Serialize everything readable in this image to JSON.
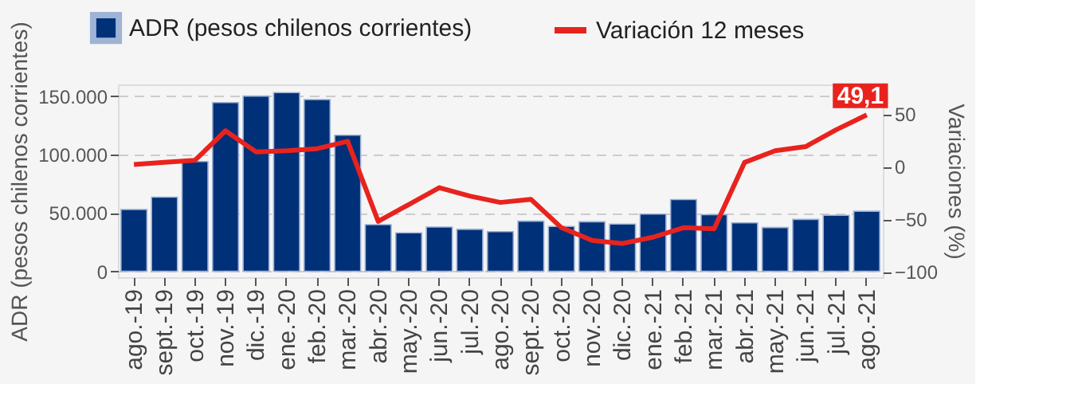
{
  "chart_data": {
    "type": "bar",
    "categories": [
      "ago.-19",
      "sept.-19",
      "oct.-19",
      "nov.-19",
      "dic.-19",
      "ene.-20",
      "feb.-20",
      "mar.-20",
      "abr.-20",
      "may.-20",
      "jun.-20",
      "jul.-20",
      "ago.-20",
      "sept.-20",
      "oct.-20",
      "nov.-20",
      "dic.-20",
      "ene.-21",
      "feb.-21",
      "mar.-21",
      "abr.-21",
      "may.-21",
      "jun.-21",
      "jul.-21",
      "ago.-21"
    ],
    "series": [
      {
        "name": "ADR (pesos chilenos corrientes)",
        "color": "#003078",
        "values": [
          53000,
          63500,
          94000,
          144500,
          150000,
          153000,
          147000,
          116500,
          40000,
          33000,
          38000,
          36000,
          34000,
          43000,
          38500,
          42500,
          40500,
          49000,
          61500,
          48500,
          41500,
          37500,
          44500,
          48000,
          51500
        ]
      },
      {
        "name": "Variación 12 meses",
        "type": "line",
        "axis": "y2",
        "color": "#e8231e",
        "values": [
          2,
          4,
          6,
          34,
          14,
          15,
          17,
          24,
          -52,
          -36,
          -20,
          -28,
          -34,
          -31,
          -58,
          -70,
          -73,
          -67,
          -58,
          -59,
          4,
          15,
          19,
          35,
          49.1
        ],
        "value_labels": [
          null,
          null,
          null,
          null,
          null,
          null,
          null,
          null,
          null,
          null,
          null,
          null,
          null,
          null,
          null,
          null,
          null,
          null,
          null,
          null,
          null,
          null,
          null,
          null,
          "49,1"
        ]
      }
    ],
    "ylabel": "ADR (pesos chilenos corrientes)",
    "y2label": "Variaciones (%)",
    "ylim": [
      -5000,
      160000
    ],
    "yticks": [
      {
        "value": 0,
        "label": "0"
      },
      {
        "value": 50000,
        "label": "50.000"
      },
      {
        "value": 100000,
        "label": "100.000"
      },
      {
        "value": 150000,
        "label": "150.000"
      }
    ],
    "y2lim": [
      -105,
      78
    ],
    "y2ticks": [
      -100,
      -50,
      0,
      50
    ],
    "grid": "y",
    "legend": "top"
  }
}
